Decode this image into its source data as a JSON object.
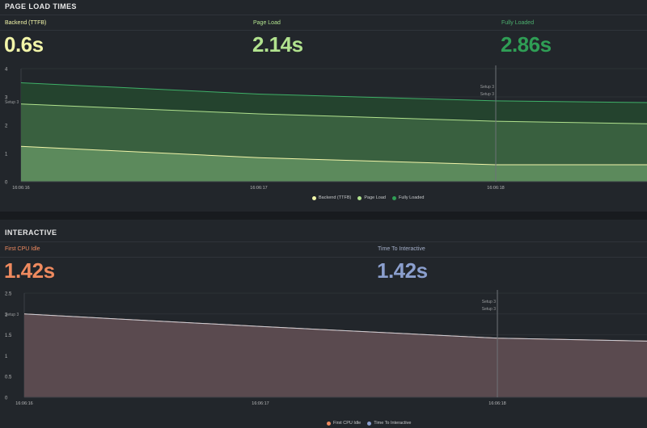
{
  "colors": {
    "background": "#181b1f",
    "panel": "#22262b",
    "backend": "#f2f5a9",
    "page_load": "#b1e28e",
    "fully_loaded": "#2f9e55",
    "first_cpu_idle": "#ef8a5f",
    "time_to_interactive": "#8b9fce"
  },
  "page_load_panel": {
    "title": "PAGE LOAD TIMES",
    "stats": [
      {
        "label": "Backend (TTFB)",
        "value": "0.6s"
      },
      {
        "label": "Page Load",
        "value": "2.14s"
      },
      {
        "label": "Fully Loaded",
        "value": "2.86s"
      }
    ],
    "legend": [
      "Backend (TTFB)",
      "Page Load",
      "Fully Loaded"
    ],
    "annotations": {
      "left": "Setup 3",
      "right_1": "Setup 3",
      "right_2": "Setup 3"
    }
  },
  "interactive_panel": {
    "title": "INTERACTIVE",
    "stats": [
      {
        "label": "First CPU Idle",
        "value": "1.42s"
      },
      {
        "label": "Time To Interactive",
        "value": "1.42s"
      }
    ],
    "legend": [
      "First CPU Idle",
      "Time To Interactive"
    ],
    "annotations": {
      "left": "Setup 3",
      "right_1": "Setup 3",
      "right_2": "Setup 3"
    }
  },
  "chart_data": [
    {
      "type": "area",
      "x": [
        "16:06:16",
        "16:06:17",
        "16:06:18",
        "end"
      ],
      "xticks": [
        "16:06:16",
        "16:06:17",
        "16:06:18"
      ],
      "ylim": [
        0,
        4
      ],
      "yticks": [
        "0",
        "1",
        "2",
        "3",
        "4"
      ],
      "series": [
        {
          "name": "Backend (TTFB)",
          "values": [
            1.25,
            0.85,
            0.6,
            0.6
          ]
        },
        {
          "name": "Page Load",
          "values": [
            2.75,
            2.4,
            2.14,
            2.05
          ]
        },
        {
          "name": "Fully Loaded",
          "values": [
            3.5,
            3.1,
            2.86,
            2.8
          ]
        }
      ]
    },
    {
      "type": "area",
      "x": [
        "16:06:16",
        "16:06:17",
        "16:06:18",
        "end"
      ],
      "xticks": [
        "16:06:16",
        "16:06:17",
        "16:06:18"
      ],
      "ylim": [
        0,
        2.5
      ],
      "yticks": [
        "0",
        "0.5",
        "1",
        "1.5",
        "2",
        "2.5"
      ],
      "series": [
        {
          "name": "First CPU Idle",
          "values": [
            2.0,
            1.7,
            1.42,
            1.35
          ]
        },
        {
          "name": "Time To Interactive",
          "values": [
            2.0,
            1.7,
            1.42,
            1.35
          ]
        }
      ]
    }
  ]
}
